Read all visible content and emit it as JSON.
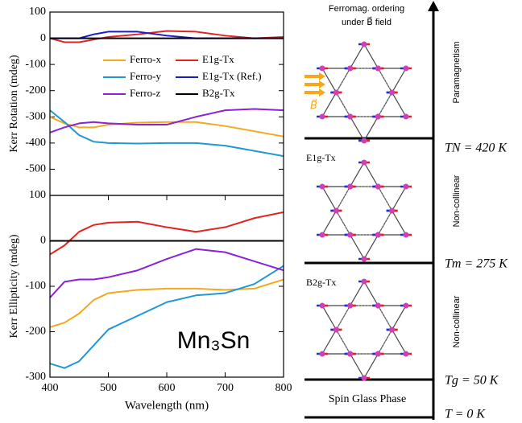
{
  "chart_data": [
    {
      "type": "line",
      "ylabel": "Kerr Rotation (mdeg)",
      "x": [
        400,
        425,
        450,
        475,
        500,
        550,
        600,
        650,
        700,
        750,
        800
      ],
      "xlim": [
        400,
        800
      ],
      "ylim": [
        -600,
        100
      ],
      "yticks": [
        100,
        0,
        -100,
        -200,
        -300,
        -400,
        -500
      ],
      "legend": "upper center",
      "series": [
        {
          "name": "Ferro-x",
          "color": "#f5a81e",
          "values": [
            -300,
            -325,
            -340,
            -340,
            -330,
            -322,
            -320,
            -320,
            -335,
            -355,
            -375
          ]
        },
        {
          "name": "Ferro-y",
          "color": "#1f98d4",
          "values": [
            -275,
            -320,
            -370,
            -395,
            -400,
            -402,
            -400,
            -400,
            -410,
            -430,
            -450
          ]
        },
        {
          "name": "Ferro-z",
          "color": "#8a22d8",
          "values": [
            -360,
            -340,
            -325,
            -320,
            -325,
            -330,
            -330,
            -300,
            -275,
            -270,
            -275
          ]
        },
        {
          "name": "E1g-Tx",
          "color": "#e2231f",
          "values": [
            0,
            -15,
            -15,
            -5,
            5,
            15,
            28,
            25,
            10,
            0,
            5
          ]
        },
        {
          "name": "E1g-Tx (Ref.)",
          "color": "#1a1ac4",
          "values": [
            0,
            0,
            0,
            15,
            25,
            25,
            10,
            0,
            0,
            0,
            0
          ]
        },
        {
          "name": "B2g-Tx",
          "color": "#000000",
          "values": [
            0,
            0,
            0,
            0,
            0,
            0,
            0,
            0,
            0,
            0,
            0
          ]
        }
      ]
    },
    {
      "type": "line",
      "ylabel": "Kerr Ellipticity (mdeg)",
      "xlabel": "Wavelength (nm)",
      "x": [
        400,
        425,
        450,
        475,
        500,
        550,
        600,
        650,
        700,
        750,
        800
      ],
      "xlim": [
        400,
        800
      ],
      "xticks": [
        400,
        500,
        600,
        700,
        800
      ],
      "ylim": [
        -300,
        100
      ],
      "yticks": [
        -300,
        -200,
        -100,
        0,
        100
      ],
      "annotation": "Mn₃Sn",
      "series": [
        {
          "color": "#f5a81e",
          "values": [
            -190,
            -180,
            -160,
            -130,
            -115,
            -108,
            -105,
            -105,
            -108,
            -105,
            -85
          ]
        },
        {
          "color": "#1f98d4",
          "values": [
            -270,
            -280,
            -265,
            -230,
            -195,
            -165,
            -135,
            -120,
            -115,
            -95,
            -55
          ]
        },
        {
          "color": "#8a22d8",
          "values": [
            -125,
            -90,
            -85,
            -85,
            -80,
            -65,
            -40,
            -18,
            -25,
            -45,
            -65
          ]
        },
        {
          "color": "#e2231f",
          "values": [
            -30,
            -10,
            20,
            35,
            40,
            42,
            30,
            20,
            30,
            50,
            63
          ]
        },
        {
          "color": "#000000",
          "values": [
            0,
            0,
            0,
            0,
            0,
            0,
            0,
            0,
            0,
            0,
            0
          ]
        }
      ]
    }
  ],
  "diagram": {
    "title": [
      "Ferromag. ordering",
      "under B⃗ field"
    ],
    "field_label": "B⃗",
    "phases": [
      "Paramagnetism",
      "Non-collinear",
      "Non-collinear"
    ],
    "transitions": [
      "TN = 420 K",
      "Tm = 275 K",
      "Tg = 50 K",
      "T = 0 K"
    ],
    "structures": [
      "E1g-Tx",
      "B2g-Tx"
    ],
    "spin_glass": "Spin Glass Phase"
  }
}
